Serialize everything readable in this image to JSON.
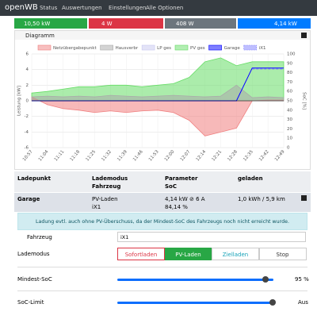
{
  "navbar": {
    "brand": "openWB",
    "links": [
      "Status",
      "Auswertungen",
      "Einstellungen",
      "Alle Optionen"
    ]
  },
  "status": [
    "10,50 kW",
    "4 W",
    "408 W",
    "4,14 kW"
  ],
  "card_title": "Diagramm",
  "chart_data": {
    "type": "line",
    "x": [
      "10:57",
      "11:04",
      "11:11",
      "11:18",
      "11:25",
      "11:32",
      "11:39",
      "11:46",
      "11:53",
      "12:00",
      "12:07",
      "12:14",
      "12:21",
      "12:28",
      "12:35",
      "12:42",
      "12:49"
    ],
    "ylabel": "Leistung [kW]",
    "y2label": "SoC [%]",
    "ylim": [
      -6,
      6
    ],
    "yticks": [
      -6,
      -4,
      -2,
      0,
      2,
      4,
      6
    ],
    "y2lim": [
      0,
      100
    ],
    "y2ticks": [
      0,
      10,
      20,
      30,
      40,
      50,
      60,
      70,
      80,
      90,
      100
    ],
    "grid": true,
    "series": [
      {
        "name": "Netzübergabepunkt",
        "color": "#f08080",
        "kind": "area",
        "values": [
          0.5,
          -0.5,
          -1,
          -1.2,
          -1.5,
          -1.3,
          -1.5,
          -1.3,
          -1.2,
          -1.5,
          -2.5,
          -4.5,
          -4,
          -3.5,
          0,
          0.1,
          0.1
        ]
      },
      {
        "name": "Hausverbr",
        "color": "#aaaaaa",
        "kind": "area",
        "values": [
          0.5,
          0.6,
          0.5,
          0.6,
          0.5,
          0.7,
          0.6,
          0.5,
          0.6,
          0.7,
          0.6,
          0.5,
          0.6,
          2,
          0.4,
          0.5,
          0.4
        ]
      },
      {
        "name": "LP ges",
        "color": "#c8c8f0",
        "kind": "line",
        "values": [
          0,
          0,
          0,
          0,
          0,
          0,
          0,
          0,
          0,
          0,
          0,
          0,
          0,
          0,
          4.2,
          4.2,
          4.2
        ]
      },
      {
        "name": "PV ges",
        "color": "#66dd66",
        "kind": "area",
        "values": [
          1,
          1.2,
          1.5,
          1.8,
          1.8,
          2,
          2,
          1.8,
          2,
          2.2,
          3,
          5,
          5.5,
          4.5,
          5,
          5,
          5
        ]
      },
      {
        "name": "Garage",
        "color": "#0000ff",
        "kind": "line",
        "values": [
          0,
          0,
          0,
          0,
          0,
          0,
          0,
          0,
          0,
          0,
          0,
          0,
          0,
          0,
          4.2,
          4.2,
          4.2
        ]
      },
      {
        "name": "iX1",
        "color": "#8080ff",
        "kind": "line",
        "dash": true,
        "axis": "y2",
        "values": [
          null,
          null,
          null,
          null,
          null,
          null,
          null,
          null,
          null,
          null,
          null,
          null,
          null,
          null,
          84,
          84,
          84
        ]
      }
    ]
  },
  "table": {
    "header1": [
      "Ladepunkt",
      "Lademodus",
      "Parameter",
      "geladen"
    ],
    "header2": [
      "Fahrzeug",
      "SoC"
    ],
    "row": {
      "name": "Garage",
      "mode": "PV-Laden",
      "power": "4,14 kW ⊘ 6 A",
      "energy": "1,0 kWh / 5,9 km",
      "vehicle": "iX1",
      "soc": "84,14 %"
    }
  },
  "alert": "Ladung evtl. auch ohne PV-Überschuss, da der Mindest-SoC des Fahrzeugs noch nicht erreicht wurde.",
  "vehicle_label": "Fahrzeug",
  "vehicle_select": "iX1",
  "mode_label": "Lademodus",
  "modes": [
    "Sofortladen",
    "PV-Laden",
    "Zielladen",
    "Stop"
  ],
  "active_mode": 1,
  "sliders": [
    {
      "label": "Mindest-SoC",
      "value": 95,
      "value_label": "95 %"
    },
    {
      "label": "SoC-Limit",
      "value_label": "Aus"
    }
  ]
}
